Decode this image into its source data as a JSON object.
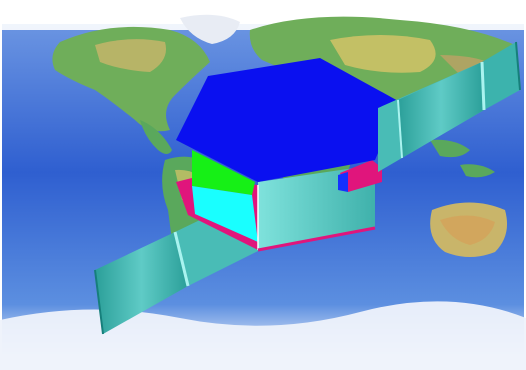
{
  "image": {
    "description_hidden": true,
    "colors": {
      "background": "#ffffff",
      "ocean_deep": "#2f5fd0",
      "ocean_light": "#6f9be6",
      "land_green": "#5aa85c",
      "land_yellow": "#d8c468",
      "land_brown": "#b08a5a",
      "ice_white": "#eef2fb",
      "hex_top": "#0a10f0",
      "body_teal": "#6fd6d0",
      "body_teal_dark": "#2fa7a4",
      "panel_teal": "#3cb3ad",
      "panel_teal_light": "#8be4df",
      "green_face": "#16f016",
      "cyan_face": "#19ffff",
      "magenta": "#e0157c",
      "blue_accent": "#1430ff"
    }
  }
}
